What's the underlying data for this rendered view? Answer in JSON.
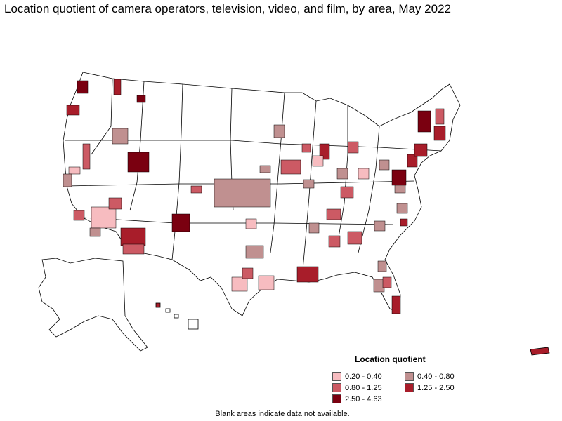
{
  "title": "Location quotient of camera operators, television, video, and film, by area, May 2022",
  "legend": {
    "title": "Location quotient",
    "items": [
      {
        "label": "0.20 - 0.40",
        "color": "#f7bcc0"
      },
      {
        "label": "0.40 - 0.80",
        "color": "#c09090"
      },
      {
        "label": "0.80 - 1.25",
        "color": "#cc5a64"
      },
      {
        "label": "1.25 - 2.50",
        "color": "#a81d2a"
      },
      {
        "label": "2.50 - 4.63",
        "color": "#7a0010"
      }
    ]
  },
  "footnote": "Blank areas indicate data not available.",
  "colors": {
    "outline": "#000000",
    "blank": "#ffffff"
  }
}
